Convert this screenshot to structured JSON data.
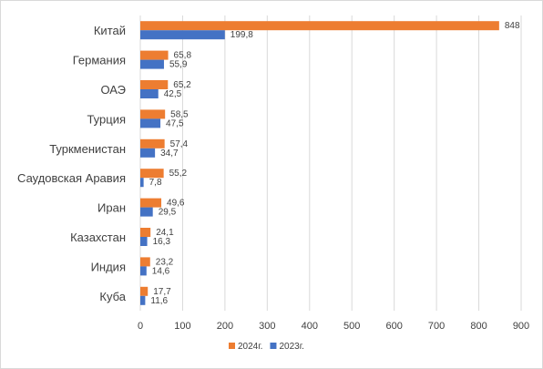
{
  "chart_data": {
    "type": "bar",
    "orientation": "horizontal",
    "categories": [
      "Китай",
      "Германия",
      "ОАЭ",
      "Турция",
      "Туркменистан",
      "Саудовская Аравия",
      "Иран",
      "Казахстан",
      "Индия",
      "Куба"
    ],
    "series": [
      {
        "name": "2024г.",
        "color": "#ed7d31",
        "values": [
          848,
          65.8,
          65.2,
          58.5,
          57.4,
          55.2,
          49.6,
          24.1,
          23.2,
          17.7
        ],
        "labels": [
          "848",
          "65,8",
          "65,2",
          "58,5",
          "57,4",
          "55,2",
          "49,6",
          "24,1",
          "23,2",
          "17,7"
        ]
      },
      {
        "name": "2023г.",
        "color": "#4472c4",
        "values": [
          199.8,
          55.9,
          42.5,
          47.5,
          34.7,
          7.8,
          29.5,
          16.3,
          14.6,
          11.6
        ],
        "labels": [
          "199,8",
          "55,9",
          "42,5",
          "47,5",
          "34,7",
          "7,8",
          "29,5",
          "16,3",
          "14,6",
          "11,6"
        ]
      }
    ],
    "x_ticks": [
      "0",
      "100",
      "200",
      "300",
      "400",
      "500",
      "600",
      "700",
      "800",
      "900"
    ],
    "xlim": [
      0,
      900
    ],
    "grid": "vertical",
    "legend_position": "bottom"
  }
}
